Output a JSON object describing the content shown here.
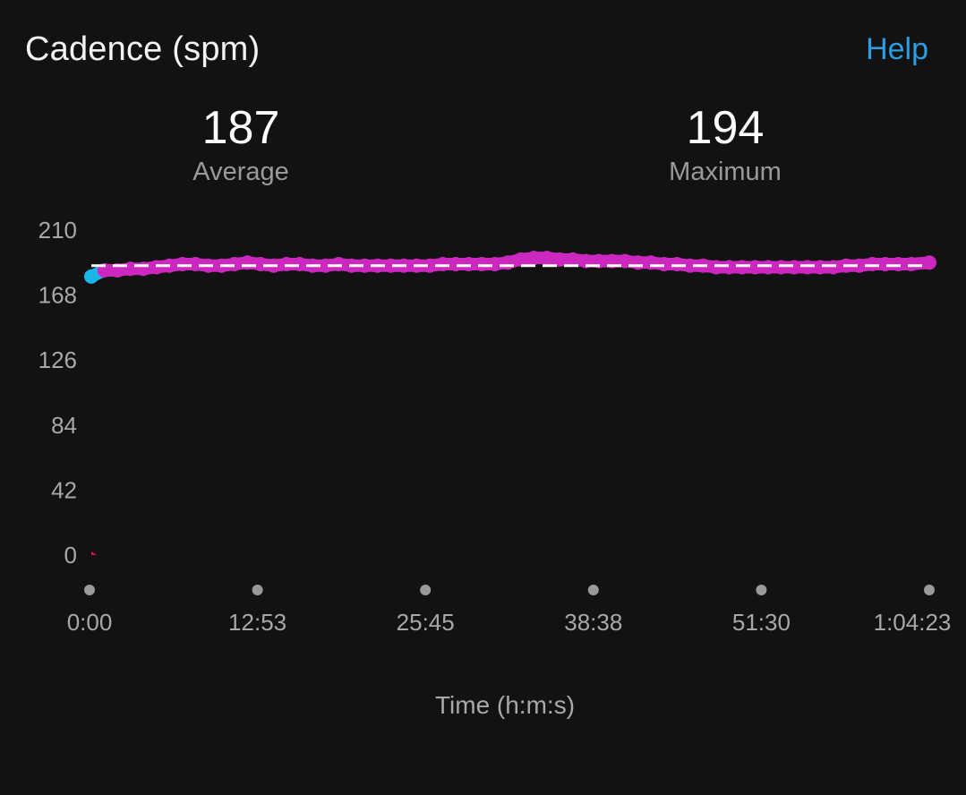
{
  "header": {
    "title": "Cadence (spm)",
    "help_label": "Help"
  },
  "stats": {
    "average": {
      "value": "187",
      "label": "Average"
    },
    "maximum": {
      "value": "194",
      "label": "Maximum"
    }
  },
  "colors": {
    "background": "#121212",
    "accent": "#2b9de3",
    "cadence_high": "#cc28c0",
    "cadence_mid": "#1ab6ea",
    "cadence_low": "#e0114a",
    "average_line": "#ffffff"
  },
  "chart_data": {
    "type": "scatter",
    "xlabel": "Time (h:m:s)",
    "ylabel": "",
    "ylim": [
      0,
      210
    ],
    "xlim_seconds": [
      0,
      3863
    ],
    "y_ticks": [
      210,
      168,
      126,
      84,
      42,
      0
    ],
    "x_ticks": [
      "0:00",
      "12:53",
      "25:45",
      "38:38",
      "51:30",
      "1:04:23"
    ],
    "average_line": 187,
    "grid": false,
    "legend": "none",
    "series": [
      {
        "x": [
          0,
          60,
          120,
          180,
          240,
          300,
          360,
          420,
          480,
          540,
          600,
          660,
          720,
          780,
          840,
          900,
          960,
          1020,
          1080,
          1140,
          1200,
          1260,
          1320,
          1380,
          1440,
          1500,
          1560,
          1620,
          1680,
          1740,
          1800,
          1860,
          1920,
          1980,
          2040,
          2100,
          2160,
          2220,
          2280,
          2340,
          2400,
          2460,
          2520,
          2580,
          2640,
          2700,
          2760,
          2820,
          2880,
          2940,
          3000,
          3060,
          3120,
          3180,
          3240,
          3300,
          3360,
          3420,
          3480,
          3540,
          3600,
          3660,
          3720,
          3780,
          3863
        ],
        "y": [
          180,
          184,
          184,
          185,
          185,
          186,
          187,
          188,
          188,
          187,
          187,
          188,
          189,
          188,
          187,
          188,
          188,
          187,
          187,
          188,
          187,
          187,
          187,
          187,
          187,
          187,
          187,
          188,
          188,
          188,
          188,
          188,
          189,
          191,
          192,
          192,
          191,
          191,
          190,
          190,
          190,
          190,
          189,
          189,
          188,
          188,
          187,
          187,
          186,
          186,
          186,
          186,
          186,
          186,
          186,
          186,
          186,
          186,
          187,
          187,
          188,
          188,
          188,
          188,
          189
        ]
      }
    ]
  }
}
